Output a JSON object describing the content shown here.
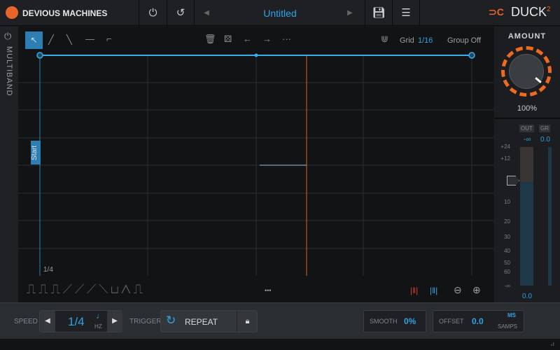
{
  "header": {
    "brand": "DEVIOUS MACHINES",
    "preset_name": "Untitled",
    "product": "DUCK",
    "product_version": "2",
    "icons": [
      "power-icon",
      "undo-icon",
      "prev-preset-icon",
      "next-preset-icon",
      "save-icon",
      "menu-icon"
    ]
  },
  "sidebar": {
    "label": "MULTIBAND"
  },
  "toolbar": {
    "grid_label": "Grid",
    "grid_value": "1/16",
    "group_label": "Group Off",
    "more": "···"
  },
  "editor": {
    "start_label": "Start",
    "division_label": "1/4",
    "more_shapes": "•••"
  },
  "amount": {
    "label": "AMOUNT",
    "value": "100%",
    "level": 1.0
  },
  "meter": {
    "out_label": "OUT",
    "gr_label": "GR",
    "out_value": "-∞",
    "gr_value": "0.0",
    "bottom_value": "0.0",
    "scale": [
      "+24",
      "+12",
      "10",
      "20",
      "30",
      "40",
      "50",
      "60",
      "-∞"
    ]
  },
  "bottom": {
    "speed_label": "SPEED",
    "speed_value": "1/4",
    "speed_unit": "HZ",
    "trigger_label": "TRIGGER",
    "trigger_value": "REPEAT",
    "smooth_label": "SMOOTH",
    "smooth_value": "0%",
    "offset_label": "OFFSET",
    "offset_value": "0.0",
    "offset_unit_ms": "MS",
    "offset_unit_samps": "SAMPS"
  },
  "colors": {
    "accent": "#2fa3e6",
    "playhead": "#e2601e",
    "brand": "#e8652a"
  }
}
